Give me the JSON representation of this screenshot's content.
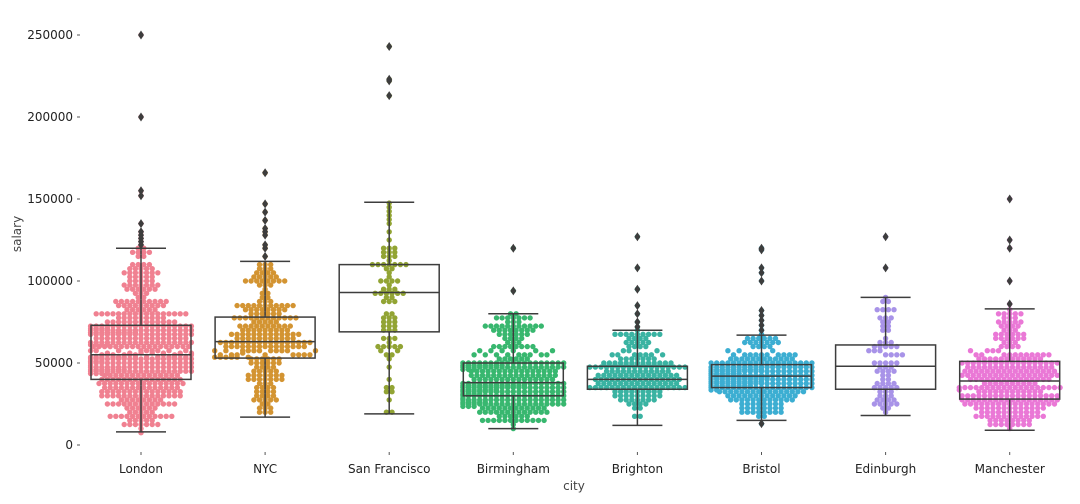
{
  "chart_data": {
    "type": "box+swarm",
    "xlabel": "city",
    "ylabel": "salary",
    "ylim": [
      0,
      265000
    ],
    "yticks": [
      0,
      50000,
      100000,
      150000,
      200000,
      250000
    ],
    "ytick_labels": [
      "0",
      "50000",
      "100000",
      "150000",
      "200000",
      "250000"
    ],
    "grid": false,
    "categories": [
      "London",
      "NYC",
      "San Francisco",
      "Birmingham",
      "Brighton",
      "Bristol",
      "Edinburgh",
      "Manchester"
    ],
    "colors": [
      "#f08191",
      "#d39432",
      "#92a434",
      "#38b76f",
      "#3ab3a2",
      "#3caed2",
      "#a893e8",
      "#ea78d6"
    ],
    "boxes": [
      {
        "city": "London",
        "whisker_low": 8000,
        "q1": 40000,
        "median": 55000,
        "q3": 73000,
        "whisker_high": 120000,
        "outliers": [
          122000,
          124000,
          126000,
          128000,
          130000,
          135000,
          152000,
          155000,
          200000,
          250000
        ],
        "n_points": 520
      },
      {
        "city": "NYC",
        "whisker_low": 17000,
        "q1": 53000,
        "median": 63000,
        "q3": 78000,
        "whisker_high": 112000,
        "outliers": [
          115000,
          120000,
          122000,
          128000,
          130000,
          132000,
          137000,
          142000,
          147000,
          166000
        ],
        "n_points": 240
      },
      {
        "city": "San Francisco",
        "whisker_low": 19000,
        "q1": 69000,
        "median": 93000,
        "q3": 110000,
        "whisker_high": 148000,
        "outliers": [
          213000,
          222000,
          223000,
          243000
        ],
        "n_points": 85
      },
      {
        "city": "Birmingham",
        "whisker_low": 10000,
        "q1": 30000,
        "median": 38000,
        "q3": 50000,
        "whisker_high": 80000,
        "outliers": [
          94000,
          120000
        ],
        "n_points": 360
      },
      {
        "city": "Brighton",
        "whisker_low": 12000,
        "q1": 34000,
        "median": 40000,
        "q3": 48000,
        "whisker_high": 70000,
        "outliers": [
          72000,
          75000,
          80000,
          85000,
          95000,
          108000,
          127000
        ],
        "n_points": 180
      },
      {
        "city": "Bristol",
        "whisker_low": 15000,
        "q1": 35000,
        "median": 42000,
        "q3": 49000,
        "whisker_high": 67000,
        "outliers": [
          70000,
          73000,
          76000,
          79000,
          82000,
          100000,
          105000,
          108000,
          119000,
          120000,
          13000
        ],
        "n_points": 290
      },
      {
        "city": "Edinburgh",
        "whisker_low": 18000,
        "q1": 34000,
        "median": 48000,
        "q3": 61000,
        "whisker_high": 90000,
        "outliers": [
          108000,
          127000
        ],
        "n_points": 75
      },
      {
        "city": "Manchester",
        "whisker_low": 9000,
        "q1": 28000,
        "median": 39000,
        "q3": 51000,
        "whisker_high": 83000,
        "outliers": [
          86000,
          100000,
          120000,
          125000,
          150000
        ],
        "n_points": 300
      }
    ]
  }
}
